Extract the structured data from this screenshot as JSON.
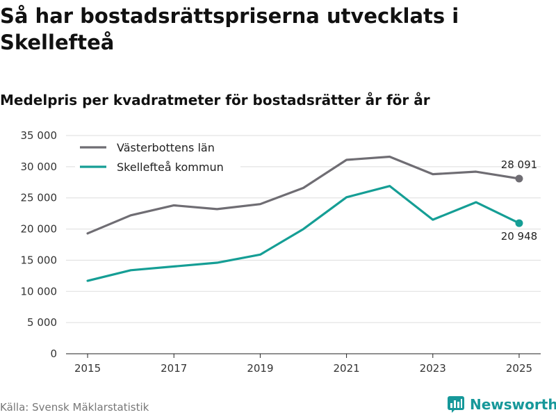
{
  "title": "Så har bostadsrättspriserna utvecklats i Skellefteå",
  "subtitle": "Medelpris per kvadratmeter för bostadsrätter år för år",
  "source": "Källa: Svensk Mäklarstatistik",
  "brand": "Newsworthy",
  "colors": {
    "series1": "#6f6d73",
    "series2": "#159e95",
    "grid": "#dddddd",
    "axis": "#222222",
    "brand": "#16989a"
  },
  "chart_data": {
    "type": "line",
    "title": "Så har bostadsrättspriserna utvecklats i Skellefteå",
    "subtitle": "Medelpris per kvadratmeter för bostadsrätter år för år",
    "xlabel": "",
    "ylabel": "",
    "x": [
      2015,
      2016,
      2017,
      2018,
      2019,
      2020,
      2021,
      2022,
      2023,
      2024,
      2025
    ],
    "x_ticks": [
      2015,
      2017,
      2019,
      2021,
      2023,
      2025
    ],
    "x_tick_labels": [
      "2015",
      "2017",
      "2019",
      "2021",
      "2023",
      "2025"
    ],
    "xlim": [
      2014.5,
      2025.5
    ],
    "ylim": [
      0,
      35000
    ],
    "y_ticks": [
      0,
      5000,
      10000,
      15000,
      20000,
      25000,
      30000,
      35000
    ],
    "y_tick_labels": [
      "0",
      "5 000",
      "10 000",
      "15 000",
      "20 000",
      "25 000",
      "30 000",
      "35 000"
    ],
    "grid": true,
    "legend_position": "top-left",
    "series": [
      {
        "name": "Västerbottens län",
        "color": "#6f6d73",
        "values": [
          19300,
          22200,
          23800,
          23200,
          24000,
          26600,
          31100,
          31600,
          28800,
          29200,
          28091
        ],
        "end_label": "28 091"
      },
      {
        "name": "Skellefteå kommun",
        "color": "#159e95",
        "values": [
          11700,
          13400,
          14000,
          14600,
          15900,
          20000,
          25100,
          26900,
          21500,
          24300,
          20948
        ],
        "end_label": "20 948"
      }
    ]
  }
}
